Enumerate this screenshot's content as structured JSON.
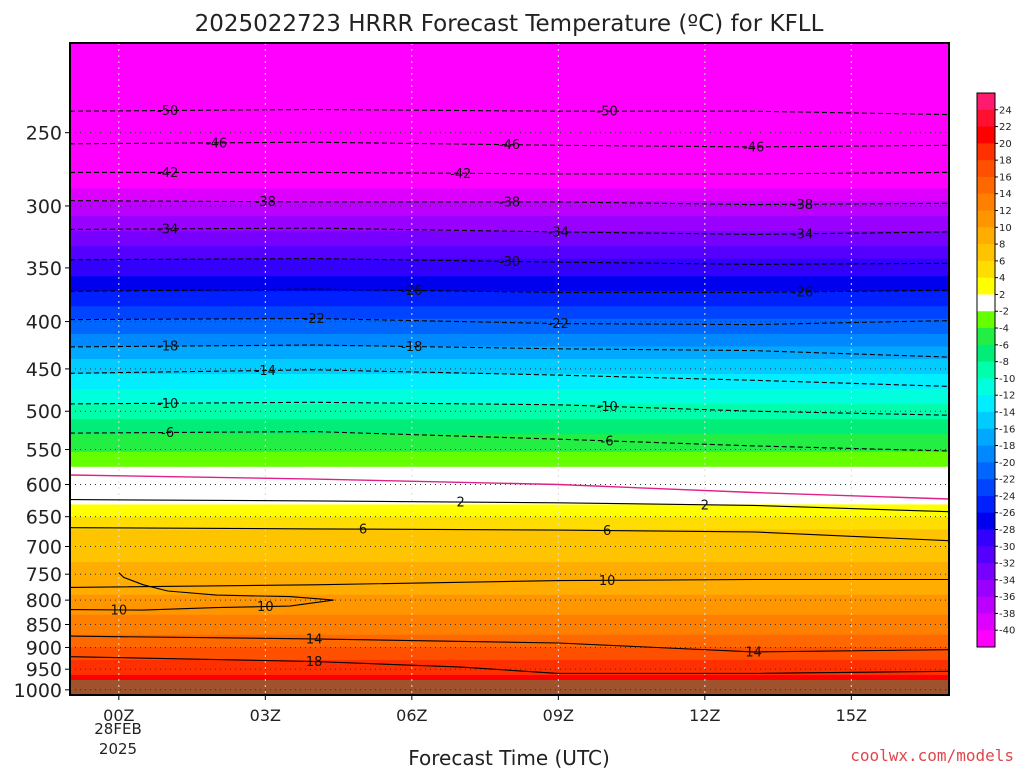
{
  "chart_data": {
    "type": "heatmap",
    "title": "2025022723 HRRR Forecast Temperature (ºC) for KFLL",
    "xlabel": "Forecast Time (UTC)",
    "ylabel": "",
    "credit": "coolwx.com/models",
    "x_ticks": [
      "00Z",
      "03Z",
      "06Z",
      "09Z",
      "12Z",
      "15Z"
    ],
    "x_tick_hours": [
      0,
      3,
      6,
      9,
      12,
      15
    ],
    "x_date_lines": [
      "28FEB",
      "2025"
    ],
    "xlim_hours": [
      -1,
      17
    ],
    "y_ticks": [
      250,
      300,
      350,
      400,
      450,
      500,
      550,
      600,
      650,
      700,
      750,
      800,
      850,
      900,
      950,
      1000
    ],
    "ylim_hpa": [
      200,
      1013
    ],
    "y_scale": "log",
    "y_inverted": true,
    "grid": true,
    "colorbar": {
      "labels": [
        24,
        22,
        20,
        18,
        16,
        14,
        12,
        10,
        8,
        6,
        4,
        2,
        -2,
        -4,
        -6,
        -8,
        -10,
        -12,
        -14,
        -16,
        -18,
        -20,
        -22,
        -24,
        -26,
        -28,
        -30,
        -32,
        -34,
        -36,
        -38,
        -40
      ],
      "colors": [
        "#ff1a6e",
        "#ff1030",
        "#ff0000",
        "#ff3000",
        "#ff5000",
        "#ff6800",
        "#ff7f00",
        "#ff9600",
        "#ffad00",
        "#ffc400",
        "#ffdd00",
        "#ffff00",
        "#ffffff",
        "#66ff00",
        "#22ee44",
        "#00ee77",
        "#00ffaa",
        "#00ffdd",
        "#00eeff",
        "#00ccff",
        "#00a8ff",
        "#0088ff",
        "#0066ff",
        "#0044ff",
        "#0020ff",
        "#0000ee",
        "#3300ff",
        "#5500ff",
        "#7700ff",
        "#9900ff",
        "#bb00ff",
        "#dd00ff",
        "#ff00ff"
      ]
    },
    "temperature_profile": [
      {
        "pressure": 200,
        "temp": -54
      },
      {
        "pressure": 238,
        "temp": -50
      },
      {
        "pressure": 258,
        "temp": -46
      },
      {
        "pressure": 277,
        "temp": -42
      },
      {
        "pressure": 297,
        "temp": -38
      },
      {
        "pressure": 320,
        "temp": -34
      },
      {
        "pressure": 343,
        "temp": -30
      },
      {
        "pressure": 371,
        "temp": -26
      },
      {
        "pressure": 398,
        "temp": -22
      },
      {
        "pressure": 426,
        "temp": -18
      },
      {
        "pressure": 455,
        "temp": -14
      },
      {
        "pressure": 492,
        "temp": -10
      },
      {
        "pressure": 530,
        "temp": -6
      },
      {
        "pressure": 575,
        "temp": -2
      },
      {
        "pressure": 610,
        "temp": 0
      },
      {
        "pressure": 630,
        "temp": 2
      },
      {
        "pressure": 672,
        "temp": 6
      },
      {
        "pressure": 790,
        "temp": 10
      },
      {
        "pressure": 870,
        "temp": 14
      },
      {
        "pressure": 930,
        "temp": 18
      },
      {
        "pressure": 985,
        "temp": 21
      },
      {
        "pressure": 1013,
        "temp": 22
      }
    ],
    "contours": [
      {
        "label": "-50",
        "dashed": true,
        "points": [
          [
            -1,
            237
          ],
          [
            4,
            236
          ],
          [
            9,
            237
          ],
          [
            13,
            237
          ],
          [
            17,
            239
          ]
        ],
        "label_hours": [
          1,
          10
        ]
      },
      {
        "label": "-46",
        "dashed": true,
        "points": [
          [
            -1,
            257
          ],
          [
            4,
            256
          ],
          [
            9,
            258
          ],
          [
            13,
            259
          ],
          [
            17,
            258
          ]
        ],
        "label_hours": [
          2,
          8,
          13
        ]
      },
      {
        "label": "-42",
        "dashed": true,
        "points": [
          [
            -1,
            276
          ],
          [
            4,
            276
          ],
          [
            9,
            277
          ],
          [
            13,
            277
          ],
          [
            17,
            276
          ]
        ],
        "label_hours": [
          1,
          7
        ]
      },
      {
        "label": "-38",
        "dashed": true,
        "points": [
          [
            -1,
            296
          ],
          [
            4,
            297
          ],
          [
            9,
            297
          ],
          [
            13,
            299
          ],
          [
            17,
            298
          ]
        ],
        "label_hours": [
          3,
          8,
          14
        ]
      },
      {
        "label": "-34",
        "dashed": true,
        "points": [
          [
            -1,
            318
          ],
          [
            4,
            317
          ],
          [
            9,
            320
          ],
          [
            13,
            322
          ],
          [
            17,
            320
          ]
        ],
        "label_hours": [
          1,
          9,
          14
        ]
      },
      {
        "label": "-30",
        "dashed": true,
        "points": [
          [
            -1,
            343
          ],
          [
            4,
            342
          ],
          [
            9,
            345
          ],
          [
            13,
            347
          ],
          [
            17,
            346
          ]
        ],
        "label_hours": [
          8
        ]
      },
      {
        "label": "-26",
        "dashed": true,
        "points": [
          [
            -1,
            371
          ],
          [
            4,
            369
          ],
          [
            9,
            372
          ],
          [
            13,
            372
          ],
          [
            17,
            370
          ]
        ],
        "label_hours": [
          6,
          14
        ]
      },
      {
        "label": "-22",
        "dashed": true,
        "points": [
          [
            -1,
            398
          ],
          [
            4,
            397
          ],
          [
            9,
            402
          ],
          [
            13,
            403
          ],
          [
            17,
            399
          ]
        ],
        "label_hours": [
          4,
          9
        ]
      },
      {
        "label": "-18",
        "dashed": true,
        "points": [
          [
            -1,
            426
          ],
          [
            4,
            424
          ],
          [
            9,
            428
          ],
          [
            13,
            430
          ],
          [
            17,
            437
          ]
        ],
        "label_hours": [
          1,
          6
        ]
      },
      {
        "label": "-14",
        "dashed": true,
        "points": [
          [
            -1,
            455
          ],
          [
            4,
            451
          ],
          [
            9,
            457
          ],
          [
            13,
            463
          ],
          [
            17,
            470
          ]
        ],
        "label_hours": [
          3
        ]
      },
      {
        "label": "-10",
        "dashed": true,
        "points": [
          [
            -1,
            491
          ],
          [
            4,
            489
          ],
          [
            9,
            492
          ],
          [
            13,
            500
          ],
          [
            17,
            505
          ]
        ],
        "label_hours": [
          1,
          10
        ]
      },
      {
        "label": "-6",
        "dashed": true,
        "points": [
          [
            -1,
            528
          ],
          [
            4,
            526
          ],
          [
            9,
            536
          ],
          [
            13,
            545
          ],
          [
            17,
            552
          ]
        ],
        "label_hours": [
          1,
          10
        ]
      },
      {
        "label": "0",
        "dashed": false,
        "magenta": true,
        "points": [
          [
            -1,
            586
          ],
          [
            4,
            592
          ],
          [
            9,
            600
          ],
          [
            13,
            612
          ],
          [
            17,
            622
          ]
        ],
        "label_hours": []
      },
      {
        "label": "2",
        "dashed": false,
        "points": [
          [
            -1,
            623
          ],
          [
            4,
            625
          ],
          [
            9,
            628
          ],
          [
            13,
            632
          ],
          [
            17,
            642
          ]
        ],
        "label_hours": [
          7,
          12
        ]
      },
      {
        "label": "6",
        "dashed": false,
        "points": [
          [
            -1,
            668
          ],
          [
            4,
            670
          ],
          [
            9,
            672
          ],
          [
            13,
            675
          ],
          [
            17,
            690
          ]
        ],
        "label_hours": [
          5,
          10
        ]
      },
      {
        "label": "10",
        "dashed": false,
        "points": [
          [
            -1,
            775
          ],
          [
            4,
            770
          ],
          [
            9,
            762
          ],
          [
            13,
            760
          ],
          [
            17,
            760
          ]
        ],
        "label_hours": [
          10
        ]
      },
      {
        "label": "10",
        "dashed": false,
        "points": [
          [
            -1,
            819
          ],
          [
            0.5,
            820
          ],
          [
            2,
            815
          ],
          [
            3.5,
            812
          ],
          [
            4.4,
            800
          ],
          [
            3.5,
            793
          ],
          [
            2,
            790
          ],
          [
            1,
            782
          ],
          [
            0.5,
            770
          ],
          [
            0.1,
            756
          ],
          [
            0,
            747
          ]
        ],
        "label_hours": [
          3,
          0
        ]
      },
      {
        "label": "14",
        "dashed": false,
        "points": [
          [
            -1,
            875
          ],
          [
            4,
            881
          ],
          [
            9,
            890
          ],
          [
            13,
            910
          ],
          [
            17,
            905
          ]
        ],
        "label_hours": [
          4,
          13
        ]
      },
      {
        "label": "18",
        "dashed": false,
        "points": [
          [
            -1,
            921
          ],
          [
            4,
            932
          ],
          [
            7,
            945
          ],
          [
            9,
            960
          ],
          [
            13,
            960
          ],
          [
            17,
            955
          ]
        ],
        "label_hours": [
          4
        ]
      }
    ]
  }
}
